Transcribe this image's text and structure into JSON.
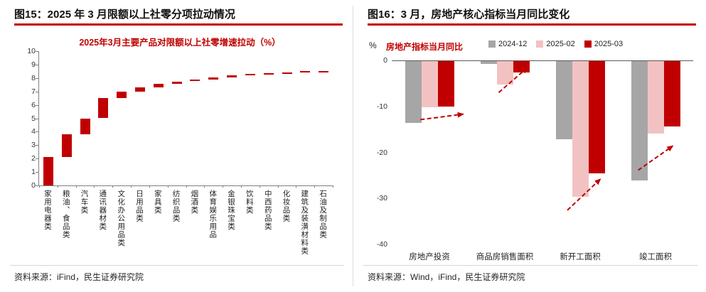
{
  "colors": {
    "accent": "#C00000",
    "series_gray": "#A6A6A6",
    "series_pink": "#F2C2C2",
    "axis_line": "#7F7F7F",
    "divider": "#DCDCDC"
  },
  "fig15": {
    "title": "图15：2025 年 3 月限额以上社零分项拉动情况",
    "source": "资料来源：iFind，民生证券研究院"
  },
  "fig16": {
    "title": "图16：3 月，房地产核心指标当月同比变化",
    "unit_label": "%",
    "axis_title": "房地产指标当月同比",
    "source": "资料来源：Wind，iFind，民生证券研究院"
  },
  "chart_data": [
    {
      "type": "bar",
      "subtype": "waterfall",
      "title": "2025年3月主要产品对限额以上社零增速拉动（%）",
      "categories": [
        "家用电器类",
        "粮油、食品类",
        "汽车类",
        "通讯器材类",
        "文化办公用品类",
        "日用品类",
        "家具类",
        "纺织品类",
        "烟酒类",
        "体育娱乐用品",
        "金银珠宝类",
        "饮料类",
        "中西药品类",
        "化妆品类",
        "建筑及装潢材料类",
        "石油及制品类"
      ],
      "values": [
        2.1,
        1.7,
        1.2,
        1.5,
        0.5,
        0.3,
        0.25,
        0.2,
        0.15,
        0.15,
        0.15,
        0.1,
        0.08,
        0.06,
        0.06,
        -0.05
      ],
      "cumulative_end": 8.45,
      "ylim": [
        0,
        10
      ],
      "yticks": [
        0,
        1,
        2,
        3,
        4,
        5,
        6,
        7,
        8,
        9,
        10
      ],
      "bar_color": "#C00000",
      "grid": false,
      "legend": "none"
    },
    {
      "type": "bar",
      "subtype": "grouped",
      "title": "房地产指标当月同比",
      "ylabel": "%",
      "categories": [
        "房地产投资",
        "商品房销售面积",
        "新开工面积",
        "竣工面积"
      ],
      "series": [
        {
          "name": "2024-12",
          "color": "#A6A6A6",
          "values": [
            -13.5,
            -0.6,
            -17.0,
            -26.0
          ]
        },
        {
          "name": "2025-02",
          "color": "#F2C2C2",
          "values": [
            -10.0,
            -5.1,
            -29.5,
            -15.7
          ]
        },
        {
          "name": "2025-03",
          "color": "#C00000",
          "values": [
            -9.9,
            -2.4,
            -24.4,
            -14.2
          ]
        }
      ],
      "ylim": [
        -40,
        0
      ],
      "yticks": [
        0,
        -10,
        -20,
        -30,
        -40
      ],
      "legend_position": "top-right",
      "grid": false,
      "annotations": [
        {
          "type": "dashed-arrow",
          "from_x": 0.38,
          "from_y": -12.8,
          "to_x": 0.95,
          "to_y": -11.6
        },
        {
          "type": "dashed-arrow",
          "from_x": 1.42,
          "from_y": -6.9,
          "to_x": 1.8,
          "to_y": -1.5
        },
        {
          "type": "dashed-arrow",
          "from_x": 2.33,
          "from_y": -32.5,
          "to_x": 2.77,
          "to_y": -25.7
        },
        {
          "type": "dashed-arrow",
          "from_x": 3.27,
          "from_y": -23.8,
          "to_x": 3.73,
          "to_y": -18.5
        }
      ]
    }
  ]
}
